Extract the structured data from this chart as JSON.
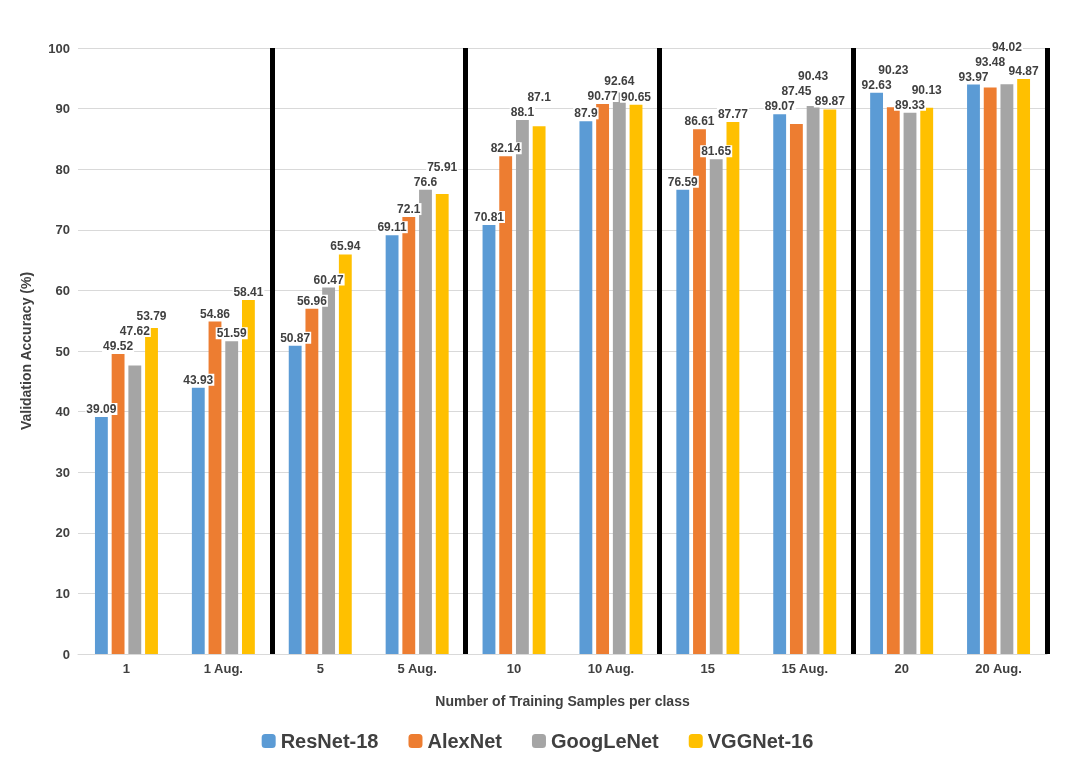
{
  "chart_data": {
    "type": "bar",
    "xlabel": "Number of Training Samples per class",
    "ylabel": "Validation Accuracy (%)",
    "categories": [
      "1",
      "1 Aug.",
      "5",
      "5 Aug.",
      "10",
      "10 Aug.",
      "15",
      "15 Aug.",
      "20",
      "20 Aug."
    ],
    "series": [
      {
        "name": "ResNet-18",
        "color": "#5b9bd5",
        "values": [
          39.09,
          43.93,
          50.87,
          69.11,
          70.81,
          87.9,
          76.59,
          89.07,
          92.63,
          93.97
        ]
      },
      {
        "name": "AlexNet",
        "color": "#ed7d31",
        "values": [
          49.52,
          54.86,
          56.96,
          72.1,
          82.14,
          90.77,
          86.61,
          87.45,
          90.23,
          93.48
        ]
      },
      {
        "name": "GoogLeNet",
        "color": "#a5a5a5",
        "values": [
          47.62,
          51.59,
          60.47,
          76.6,
          88.1,
          92.64,
          81.65,
          90.43,
          89.33,
          94.02
        ]
      },
      {
        "name": "VGGNet-16",
        "color": "#ffc000",
        "values": [
          53.79,
          58.41,
          65.94,
          75.91,
          87.1,
          90.65,
          87.77,
          89.87,
          90.13,
          94.87
        ]
      }
    ],
    "ylim": [
      0,
      100
    ],
    "yticks": [
      0,
      10,
      20,
      30,
      40,
      50,
      60,
      70,
      80,
      90,
      100
    ],
    "grid": "y",
    "legend": "bottom",
    "data_labels": true
  }
}
